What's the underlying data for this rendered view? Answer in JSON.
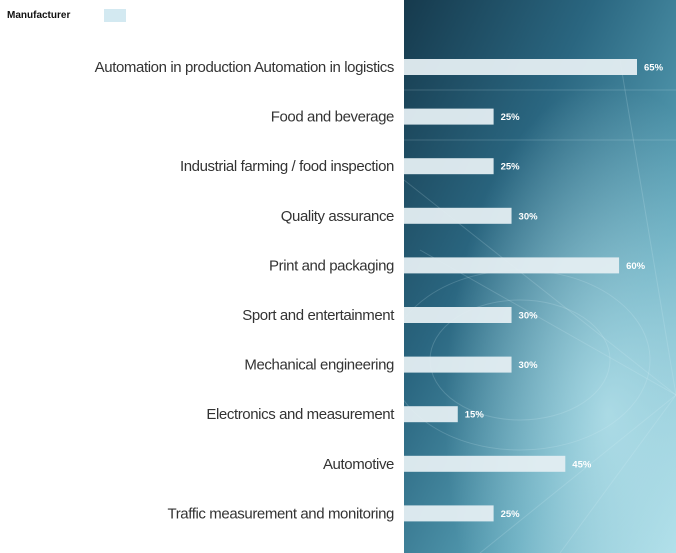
{
  "chart_data": {
    "type": "bar",
    "orientation": "horizontal",
    "categories": [
      "Automation in production Automation in logistics",
      "Food and beverage",
      "Industrial farming / food inspection",
      "Quality assurance",
      "Print and packaging",
      "Sport and entertainment",
      "Mechanical engineering",
      "Electronics and measurement",
      "Automotive",
      "Traffic measurement and monitoring"
    ],
    "series": [
      {
        "name": "Manufacturer",
        "values": [
          65,
          25,
          25,
          30,
          60,
          30,
          30,
          15,
          45,
          25
        ],
        "labels": [
          "65%",
          "25%",
          "25%",
          "30%",
          "60%",
          "30%",
          "30%",
          "15%",
          "45%",
          "25%"
        ]
      }
    ],
    "xlim": [
      0,
      65
    ],
    "legend": "top-left",
    "grid": false,
    "colors": {
      "bar": "#e4eef2",
      "panel_dark": "#1f5e7a",
      "panel_light": "#9fd3e0",
      "legend_swatch": "#d3e9f1"
    }
  }
}
